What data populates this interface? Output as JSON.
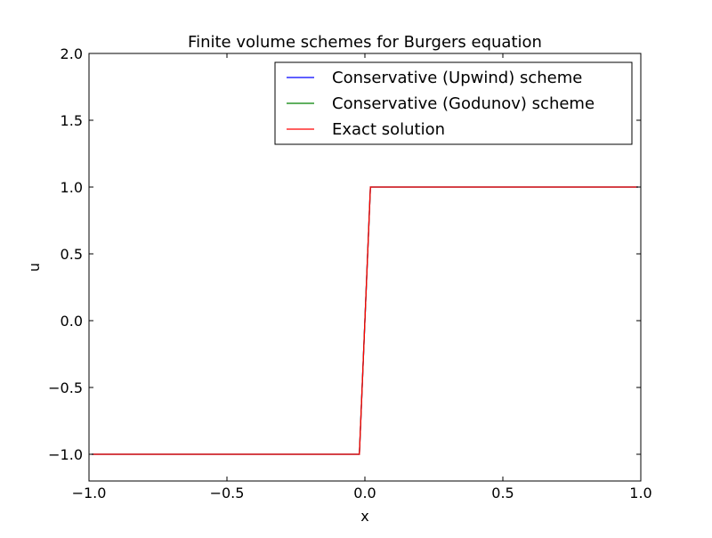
{
  "chart_data": {
    "type": "line",
    "title": "Finite volume schemes for Burgers equation",
    "xlabel": "x",
    "ylabel": "u",
    "xlim": [
      -1.0,
      1.0
    ],
    "ylim": [
      -1.2,
      2.0
    ],
    "xticks": [
      -1.0,
      -0.5,
      0.0,
      0.5,
      1.0
    ],
    "xtick_labels": [
      "−1.0",
      "−0.5",
      "0.0",
      "0.5",
      "1.0"
    ],
    "yticks": [
      -1.0,
      -0.5,
      0.0,
      0.5,
      1.0,
      1.5,
      2.0
    ],
    "ytick_labels": [
      "−1.0",
      "−0.5",
      "0.0",
      "0.5",
      "1.0",
      "1.5",
      "2.0"
    ],
    "grid": false,
    "legend_position": "top-right",
    "series": [
      {
        "name": "Conservative (Upwind) scheme",
        "color": "#0000ff",
        "x": [
          -0.99,
          -0.02,
          0.02,
          0.99
        ],
        "y": [
          -1.0,
          -1.0,
          1.0,
          1.0
        ]
      },
      {
        "name": "Conservative (Godunov) scheme",
        "color": "#008000",
        "x": [
          -0.99,
          -0.02,
          0.02,
          0.99
        ],
        "y": [
          -1.0,
          -1.0,
          1.0,
          1.0
        ]
      },
      {
        "name": "Exact solution",
        "color": "#ff0000",
        "x": [
          -0.99,
          -0.02,
          0.02,
          0.99
        ],
        "y": [
          -1.0,
          -1.0,
          1.0,
          1.0
        ]
      }
    ]
  }
}
